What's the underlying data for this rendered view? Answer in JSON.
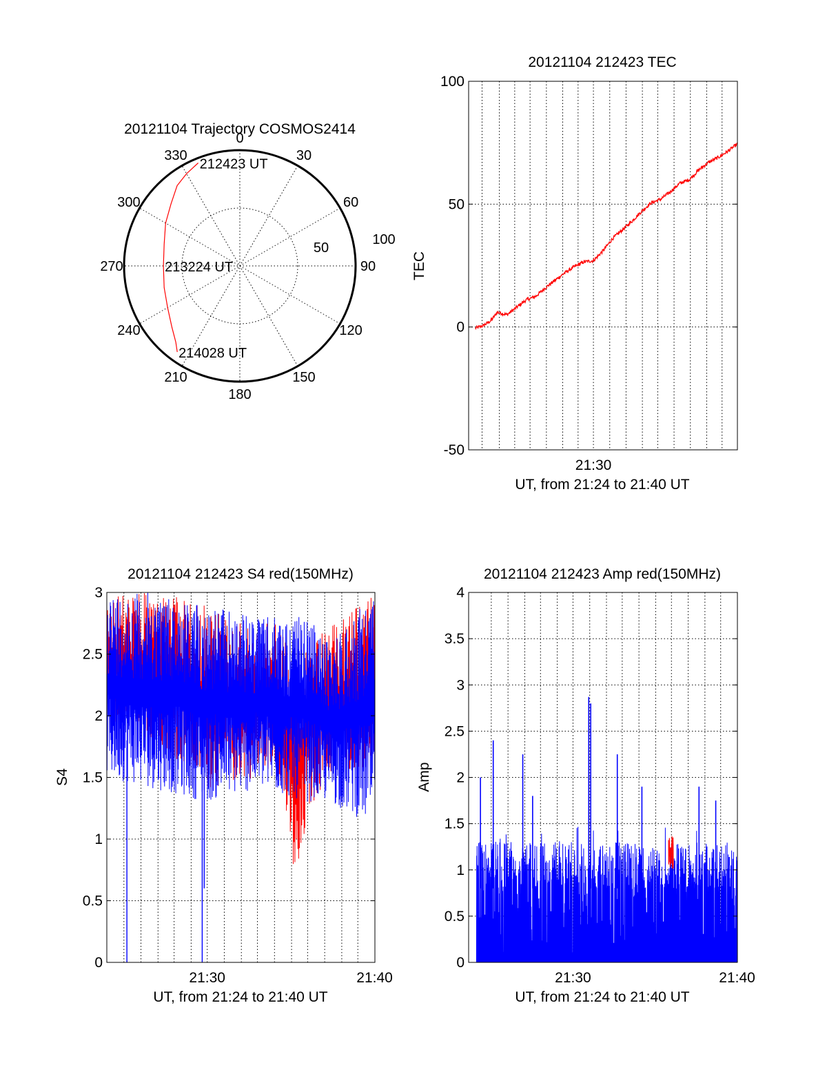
{
  "figure": {
    "date": "20121104",
    "start": "212423"
  },
  "chart_data": [
    {
      "id": "trajectory",
      "type": "polar",
      "title": "20121104 Trajectory COSMOS2414",
      "azimuth_labels": [
        "0",
        "30",
        "60",
        "90",
        "120",
        "150",
        "180",
        "210",
        "240",
        "270",
        "300",
        "330"
      ],
      "radial_labels": [
        "50",
        "100"
      ],
      "radial_max": 100,
      "series": [
        {
          "color": "#ff0000",
          "points": [
            [
              338,
              96
            ],
            [
              330,
              92
            ],
            [
              322,
              88
            ],
            [
              312,
              80
            ],
            [
              300,
              74
            ],
            [
              286,
              68
            ],
            [
              270,
              66
            ],
            [
              254,
              68
            ],
            [
              240,
              72
            ],
            [
              228,
              79
            ],
            [
              220,
              86
            ],
            [
              216,
              92
            ]
          ]
        }
      ],
      "annotations": [
        {
          "text": "212423 UT",
          "az": 338,
          "r": 96
        },
        {
          "text": "213224 UT",
          "az": 270,
          "r": 66
        },
        {
          "text": "214028 UT",
          "az": 216,
          "r": 92
        }
      ]
    },
    {
      "id": "tec",
      "type": "line",
      "title": "20121104 212423 TEC",
      "xlabel": "UT, from 21:24 to 21:40 UT",
      "ylabel": "TEC",
      "xlim": [
        21.37,
        21.65
      ],
      "ylim": [
        -50,
        100
      ],
      "yticks": [
        "-50",
        "0",
        "50",
        "100"
      ],
      "xticks": [
        {
          "v": 21.5,
          "label": "21:30"
        }
      ],
      "xgrid": [
        21.384,
        21.402,
        21.418,
        21.434,
        21.451,
        21.468,
        21.484,
        21.5,
        21.517,
        21.534,
        21.551,
        21.567,
        21.584,
        21.601,
        21.618,
        21.634
      ],
      "ygrid": [
        0,
        50
      ],
      "series": [
        {
          "color": "#ff0000",
          "x": [
            21.377,
            21.385,
            21.393,
            21.4,
            21.41,
            21.42,
            21.43,
            21.44,
            21.45,
            21.46,
            21.47,
            21.48,
            21.49,
            21.5,
            21.51,
            21.52,
            21.53,
            21.54,
            21.55,
            21.56,
            21.57,
            21.58,
            21.59,
            21.6,
            21.61,
            21.62,
            21.63,
            21.64,
            21.65
          ],
          "y": [
            -0.5,
            0.5,
            2.5,
            6,
            5,
            8,
            11,
            12.5,
            16,
            19,
            22,
            24.5,
            26.5,
            27,
            31,
            36,
            39.5,
            43,
            47,
            50.5,
            52,
            55,
            58.5,
            60,
            64,
            67,
            69,
            71.5,
            74.5
          ]
        }
      ]
    },
    {
      "id": "s4",
      "type": "line",
      "title": "20121104 212423 S4 red(150MHz)",
      "xlabel": "UT, from 21:24 to 21:40 UT",
      "ylabel": "S4",
      "xlim": [
        21.4,
        21.667
      ],
      "ylim": [
        0,
        3
      ],
      "yticks": [
        "0",
        "0.5",
        "1",
        "1.5",
        "2",
        "2.5",
        "3"
      ],
      "xticks": [
        {
          "v": 21.5,
          "label": "21:30"
        },
        {
          "v": 21.6667,
          "label": "21:40"
        }
      ],
      "xgrid": [
        21.417,
        21.434,
        21.451,
        21.467,
        21.484,
        21.5,
        21.517,
        21.534,
        21.55,
        21.567,
        21.584,
        21.6,
        21.617,
        21.634,
        21.65
      ],
      "ygrid": [
        0.5,
        1,
        1.5,
        2,
        2.5
      ],
      "series": [
        {
          "name": "",
          "color": "#ff0000",
          "envelope": {
            "x": [
              21.4,
              21.45,
              21.5,
              21.55,
              21.57,
              21.59,
              21.6,
              21.62,
              21.667
            ],
            "lo": [
              1.9,
              1.8,
              1.4,
              1.5,
              1.6,
              0.4,
              1.2,
              1.5,
              1.6
            ],
            "hi": [
              3.0,
              3.0,
              2.9,
              2.7,
              2.8,
              2.4,
              2.6,
              2.7,
              3.0
            ]
          }
        },
        {
          "name": "",
          "color": "#0000ff",
          "envelope": {
            "x": [
              21.4,
              21.45,
              21.5,
              21.55,
              21.6,
              21.62,
              21.667
            ],
            "lo": [
              1.5,
              1.4,
              1.3,
              1.4,
              1.3,
              1.3,
              1.1
            ],
            "hi": [
              3.0,
              3.0,
              2.9,
              2.8,
              2.8,
              2.6,
              3.0
            ]
          },
          "spikes": [
            {
              "x": 21.42,
              "y": 0.0
            },
            {
              "x": 21.495,
              "y": 0.0
            },
            {
              "x": 21.497,
              "y": 0.6
            }
          ]
        }
      ]
    },
    {
      "id": "amp",
      "type": "area",
      "title": "20121104 212423 Amp red(150MHz)",
      "xlabel": "UT, from 21:24 to 21:40 UT",
      "ylabel": "Amp",
      "xlim": [
        21.394,
        21.667
      ],
      "ylim": [
        0,
        4
      ],
      "yticks": [
        "0",
        "0.5",
        "1",
        "1.5",
        "2",
        "2.5",
        "3",
        "3.5",
        "4"
      ],
      "xticks": [
        {
          "v": 21.5,
          "label": "21:30"
        },
        {
          "v": 21.6667,
          "label": "21:40"
        }
      ],
      "xgrid": [
        21.417,
        21.434,
        21.451,
        21.467,
        21.484,
        21.5,
        21.517,
        21.534,
        21.55,
        21.567,
        21.584,
        21.6,
        21.617,
        21.634,
        21.65
      ],
      "ygrid": [
        0.5,
        1,
        1.5,
        2,
        2.5,
        3,
        3.5
      ],
      "series": [
        {
          "name": "",
          "color": "#0000ff",
          "base": 0.8,
          "top": 1.3,
          "x_start": 21.402,
          "spikes": [
            {
              "x": 21.406,
              "y": 2.0
            },
            {
              "x": 21.419,
              "y": 2.4
            },
            {
              "x": 21.449,
              "y": 2.25
            },
            {
              "x": 21.459,
              "y": 1.8
            },
            {
              "x": 21.516,
              "y": 2.87
            },
            {
              "x": 21.518,
              "y": 2.8
            },
            {
              "x": 21.545,
              "y": 2.25
            },
            {
              "x": 21.57,
              "y": 1.9
            },
            {
              "x": 21.628,
              "y": 1.9
            },
            {
              "x": 21.645,
              "y": 1.75
            }
          ]
        },
        {
          "name": "",
          "color": "#ff0000",
          "segment": {
            "x0": 21.597,
            "x1": 21.602,
            "lo": 1.0,
            "hi": 1.38
          }
        }
      ]
    }
  ]
}
